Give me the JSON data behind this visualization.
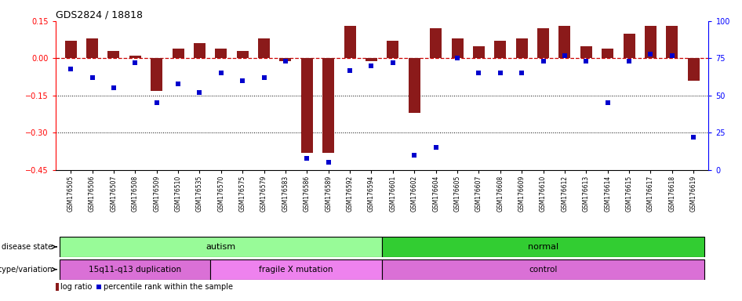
{
  "title": "GDS2824 / 18818",
  "samples": [
    "GSM176505",
    "GSM176506",
    "GSM176507",
    "GSM176508",
    "GSM176509",
    "GSM176510",
    "GSM176535",
    "GSM176570",
    "GSM176575",
    "GSM176579",
    "GSM176583",
    "GSM176586",
    "GSM176589",
    "GSM176592",
    "GSM176594",
    "GSM176601",
    "GSM176602",
    "GSM176604",
    "GSM176605",
    "GSM176607",
    "GSM176608",
    "GSM176609",
    "GSM176610",
    "GSM176612",
    "GSM176613",
    "GSM176614",
    "GSM176615",
    "GSM176617",
    "GSM176618",
    "GSM176619"
  ],
  "log_ratio": [
    0.07,
    0.08,
    0.03,
    0.01,
    -0.13,
    0.04,
    0.06,
    0.04,
    0.03,
    0.08,
    -0.01,
    -0.38,
    -0.38,
    0.13,
    -0.01,
    0.07,
    -0.22,
    0.12,
    0.08,
    0.05,
    0.07,
    0.08,
    0.12,
    0.13,
    0.05,
    0.04,
    0.1,
    0.13,
    0.13,
    -0.09
  ],
  "percentile": [
    68,
    62,
    55,
    72,
    45,
    58,
    52,
    65,
    60,
    62,
    73,
    8,
    5,
    67,
    70,
    72,
    10,
    15,
    75,
    65,
    65,
    65,
    73,
    77,
    73,
    45,
    73,
    78,
    77,
    22
  ],
  "ylim_left": [
    -0.45,
    0.15
  ],
  "ylim_right": [
    0,
    100
  ],
  "yticks_left": [
    0.15,
    0.0,
    -0.15,
    -0.3,
    -0.45
  ],
  "yticks_right": [
    100,
    75,
    50,
    25,
    0
  ],
  "disease_groups": [
    {
      "label": "autism",
      "start": 0,
      "end": 14,
      "color": "#98FB98"
    },
    {
      "label": "normal",
      "start": 15,
      "end": 29,
      "color": "#32CD32"
    }
  ],
  "genotype_groups": [
    {
      "label": "15q11-q13 duplication",
      "start": 0,
      "end": 6,
      "color": "#DA70D6"
    },
    {
      "label": "fragile X mutation",
      "start": 7,
      "end": 14,
      "color": "#EE82EE"
    },
    {
      "label": "control",
      "start": 15,
      "end": 29,
      "color": "#DA70D6"
    }
  ],
  "bar_color": "#8B1A1A",
  "dot_color": "#0000CD",
  "ref_line_color": "#CD0000",
  "disease_state_label": "disease state",
  "genotype_label": "genotype/variation",
  "legend_items": [
    {
      "marker": "square",
      "color": "#8B1A1A",
      "label": "log ratio"
    },
    {
      "marker": "square",
      "color": "#0000CD",
      "label": "percentile rank within the sample"
    }
  ]
}
